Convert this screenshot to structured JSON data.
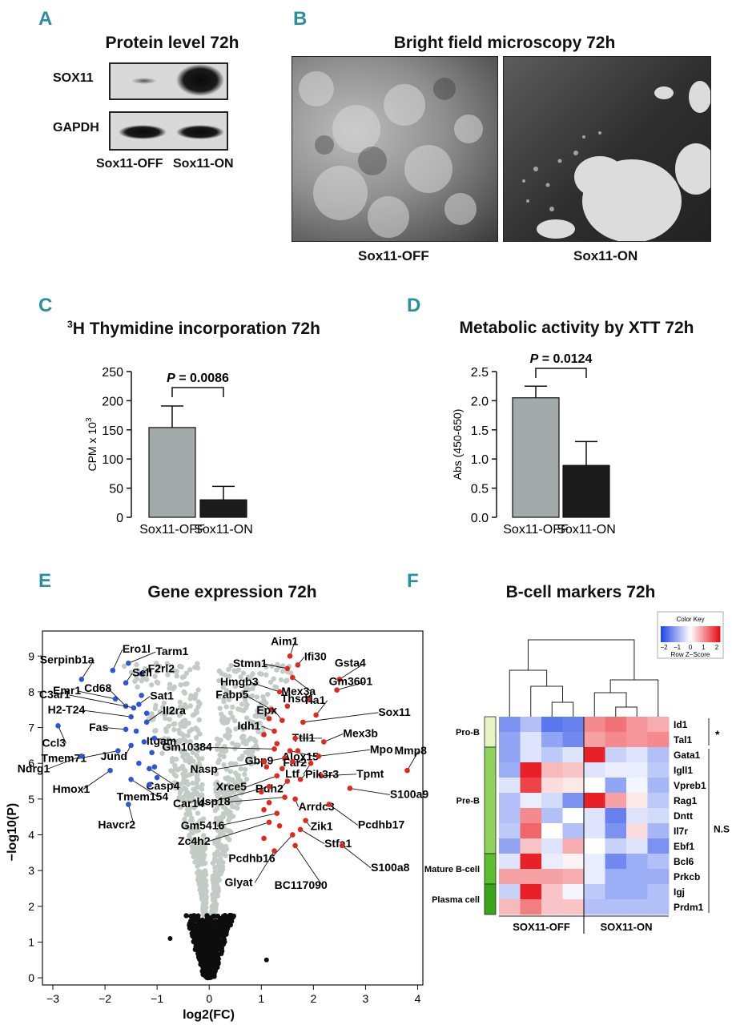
{
  "panels": {
    "A": "A",
    "B": "B",
    "C": "C",
    "D": "D",
    "E": "E",
    "F": "F"
  },
  "panelA": {
    "title": "Protein level 72h",
    "rows": [
      "SOX11",
      "GAPDH"
    ],
    "lanes": [
      "Sox11-OFF",
      "Sox11-ON"
    ]
  },
  "panelB": {
    "title": "Bright field microscopy 72h",
    "images": [
      "Sox11-OFF",
      "Sox11-ON"
    ]
  },
  "panelC": {
    "title_sup": "3",
    "title": "H Thymidine incorporation 72h",
    "ylabel_main": "CPM x 10",
    "ylabel_sup": "3",
    "p_label": "P",
    "p_value": " = 0.0086"
  },
  "panelD": {
    "title": "Metabolic activity by XTT 72h",
    "ylabel": "Abs (450-650)",
    "p_label": "P",
    "p_value": " = 0.0124"
  },
  "panelE": {
    "title": "Gene expression 72h"
  },
  "panelF": {
    "title": "B-cell markers 72h",
    "colorkey_title": "Color Key",
    "colorkey_ticks": [
      "−2",
      "−1",
      "0",
      "1",
      "2"
    ],
    "colorkey_label": "Row Z−Score",
    "groups": [
      "Pro-B",
      "Pre-B",
      "Mature B-cell",
      "Plasma cell"
    ],
    "genes": [
      "Id1",
      "Tal1",
      "Gata1",
      "Igll1",
      "Vpreb1",
      "Rag1",
      "Dntt",
      "Il7r",
      "Ebf1",
      "Bcl6",
      "Prkcb",
      "Igj",
      "Prdm1"
    ],
    "columns": [
      "SOX11-OFF",
      "SOX11-ON"
    ],
    "sig_mark": "*",
    "ns_mark": "N.S"
  },
  "chart_data": [
    {
      "type": "bar",
      "title": "3H Thymidine incorporation 72h",
      "categories": [
        "Sox11-OFF",
        "Sox11-ON"
      ],
      "values": [
        154,
        30
      ],
      "errors": [
        37,
        23
      ],
      "colors": [
        "#a3aaaa",
        "#1b1b1b"
      ],
      "ylabel": "CPM x 10^3",
      "ylim": [
        0,
        250
      ],
      "yticks": [
        0,
        50,
        100,
        150,
        200,
        250
      ],
      "ytick_labels": [
        "0",
        "50",
        "100",
        "150",
        "200",
        "250"
      ],
      "annotation": "P = 0.0086"
    },
    {
      "type": "bar",
      "title": "Metabolic activity by XTT 72h",
      "categories": [
        "Sox11-OFF",
        "Sox11-ON"
      ],
      "values": [
        2.05,
        0.89
      ],
      "errors": [
        0.2,
        0.41
      ],
      "colors": [
        "#a3aaaa",
        "#1b1b1b"
      ],
      "ylabel": "Abs (450-650)",
      "ylim": [
        0,
        2.5
      ],
      "yticks": [
        0,
        0.5,
        1,
        1.5,
        2,
        2.5
      ],
      "ytick_labels": [
        "0.0",
        "0.5",
        "1.0",
        "1.5",
        "2.0",
        "2.5"
      ],
      "annotation": "P = 0.0124"
    },
    {
      "type": "scatter",
      "title": "Gene expression 72h",
      "xlabel": "log2(FC)",
      "ylabel": "−log10(P)",
      "xlim": [
        -3.2,
        4.1
      ],
      "ylim": [
        -0.2,
        9.7
      ],
      "xticks": [
        -3,
        -2,
        -1,
        0,
        1,
        2,
        3,
        4
      ],
      "xtick_labels": [
        "−3",
        "−2",
        "−1",
        "0",
        "1",
        "2",
        "3",
        "4"
      ],
      "yticks": [
        0,
        1,
        2,
        3,
        4,
        5,
        6,
        7,
        8,
        9
      ],
      "ytick_labels": [
        "0",
        "1",
        "2",
        "3",
        "4",
        "5",
        "6",
        "7",
        "8",
        "9"
      ],
      "series": [
        {
          "name": "down",
          "color": "#2e55d6",
          "points": [
            {
              "gene": "Serpinb1a",
              "x": -2.45,
              "y": 8.35
            },
            {
              "gene": "Ero1l",
              "x": -1.85,
              "y": 8.6
            },
            {
              "gene": "Tarm1",
              "x": -1.55,
              "y": 8.8
            },
            {
              "gene": "F2rl2",
              "x": -1.3,
              "y": 8.5
            },
            {
              "gene": "Sell",
              "x": -1.6,
              "y": 8.25
            },
            {
              "gene": "Emr1",
              "x": -1.8,
              "y": 7.8
            },
            {
              "gene": "Cd68",
              "x": -1.6,
              "y": 7.6
            },
            {
              "gene": "C3ar1",
              "x": -1.45,
              "y": 7.55
            },
            {
              "gene": "Sat1",
              "x": -1.35,
              "y": 7.65
            },
            {
              "gene": "H2-T24",
              "x": -1.5,
              "y": 7.3
            },
            {
              "gene": "Il2ra",
              "x": -1.2,
              "y": 7.15
            },
            {
              "gene": "Ccl3",
              "x": -2.9,
              "y": 7.05
            },
            {
              "gene": "Fas",
              "x": -1.6,
              "y": 6.95
            },
            {
              "gene": "Itgam",
              "x": -1.05,
              "y": 6.7
            },
            {
              "gene": "Jund",
              "x": -1.5,
              "y": 6.5
            },
            {
              "gene": "Tmem71",
              "x": -1.75,
              "y": 6.35
            },
            {
              "gene": "Ndrg1",
              "x": -2.45,
              "y": 6.2
            },
            {
              "gene": "Hmox1",
              "x": -1.9,
              "y": 5.8
            },
            {
              "gene": "Casp4",
              "x": -1.15,
              "y": 5.85
            },
            {
              "gene": "Tmem154",
              "x": -1.5,
              "y": 5.55
            },
            {
              "gene": "Havcr2",
              "x": -1.55,
              "y": 4.85
            },
            {
              "gene": "",
              "x": -1.3,
              "y": 7.9
            },
            {
              "gene": "",
              "x": -1.25,
              "y": 6.6
            },
            {
              "gene": "",
              "x": -1.1,
              "y": 6.3
            },
            {
              "gene": "",
              "x": -1.05,
              "y": 5.9
            },
            {
              "gene": "",
              "x": -1.15,
              "y": 5.4
            },
            {
              "gene": "",
              "x": -1.0,
              "y": 5.6
            },
            {
              "gene": "",
              "x": -1.35,
              "y": 6.0
            },
            {
              "gene": "",
              "x": -1.4,
              "y": 6.9
            },
            {
              "gene": "",
              "x": -1.2,
              "y": 7.4
            }
          ]
        },
        {
          "name": "up",
          "color": "#e0281d",
          "points": [
            {
              "gene": "Aim1",
              "x": 1.55,
              "y": 9.0
            },
            {
              "gene": "Ifi30",
              "x": 1.7,
              "y": 8.75
            },
            {
              "gene": "Stmn1",
              "x": 1.5,
              "y": 8.65
            },
            {
              "gene": "Mex3a",
              "x": 1.6,
              "y": 8.4
            },
            {
              "gene": "Gsta4",
              "x": 2.5,
              "y": 8.35
            },
            {
              "gene": "Gm3601",
              "x": 2.45,
              "y": 8.05
            },
            {
              "gene": "Hmgb3",
              "x": 1.35,
              "y": 8.0
            },
            {
              "gene": "Thsd1",
              "x": 1.9,
              "y": 7.8
            },
            {
              "gene": "Tia1",
              "x": 2.05,
              "y": 7.35
            },
            {
              "gene": "Sox11",
              "x": 1.8,
              "y": 7.15
            },
            {
              "gene": "Fabp5",
              "x": 1.2,
              "y": 7.5
            },
            {
              "gene": "Epx",
              "x": 1.4,
              "y": 7.2
            },
            {
              "gene": "Idh1",
              "x": 1.25,
              "y": 6.9
            },
            {
              "gene": "Ttll1",
              "x": 1.65,
              "y": 6.7
            },
            {
              "gene": "Mex3b",
              "x": 2.2,
              "y": 6.6
            },
            {
              "gene": "Gm10384",
              "x": 1.25,
              "y": 6.4
            },
            {
              "gene": "Alox15",
              "x": 1.55,
              "y": 6.35
            },
            {
              "gene": "Mpo",
              "x": 2.1,
              "y": 6.2
            },
            {
              "gene": "Gbp9",
              "x": 1.45,
              "y": 6.15
            },
            {
              "gene": "Far2",
              "x": 1.6,
              "y": 6.05
            },
            {
              "gene": "Ltf",
              "x": 1.95,
              "y": 6.0
            },
            {
              "gene": "Nasp",
              "x": 1.05,
              "y": 6.05
            },
            {
              "gene": "Mmp8",
              "x": 3.8,
              "y": 5.8
            },
            {
              "gene": "Xrce5",
              "x": 1.3,
              "y": 5.65
            },
            {
              "gene": "Tpmt",
              "x": 2.15,
              "y": 5.65
            },
            {
              "gene": "Bdh2",
              "x": 1.5,
              "y": 5.5
            },
            {
              "gene": "Pik3r3",
              "x": 1.75,
              "y": 5.55
            },
            {
              "gene": "Car14",
              "x": 1.15,
              "y": 5.35
            },
            {
              "gene": "S100a9",
              "x": 2.7,
              "y": 5.3
            },
            {
              "gene": "Usp18",
              "x": 1.45,
              "y": 5.05
            },
            {
              "gene": "Arrdc3",
              "x": 1.65,
              "y": 5.0
            },
            {
              "gene": "Pcdhb17",
              "x": 2.3,
              "y": 4.85
            },
            {
              "gene": "Gm5416",
              "x": 1.3,
              "y": 4.6
            },
            {
              "gene": "Zik1",
              "x": 1.85,
              "y": 4.4
            },
            {
              "gene": "Zc4h2",
              "x": 1.15,
              "y": 4.35
            },
            {
              "gene": "Stfa1",
              "x": 1.75,
              "y": 4.15
            },
            {
              "gene": "Pcdhb16",
              "x": 1.6,
              "y": 4.0
            },
            {
              "gene": "BC117090",
              "x": 1.65,
              "y": 3.7
            },
            {
              "gene": "S100a8",
              "x": 2.55,
              "y": 3.7
            },
            {
              "gene": "Glyat",
              "x": 1.25,
              "y": 3.55
            },
            {
              "gene": "",
              "x": 1.05,
              "y": 6.8
            },
            {
              "gene": "",
              "x": 1.1,
              "y": 5.9
            },
            {
              "gene": "",
              "x": 1.0,
              "y": 5.2
            },
            {
              "gene": "",
              "x": 1.15,
              "y": 4.9
            },
            {
              "gene": "",
              "x": 1.35,
              "y": 4.25
            },
            {
              "gene": "",
              "x": 1.05,
              "y": 4.7
            },
            {
              "gene": "",
              "x": 1.4,
              "y": 5.85
            },
            {
              "gene": "",
              "x": 1.5,
              "y": 7.6
            },
            {
              "gene": "",
              "x": 1.15,
              "y": 7.25
            },
            {
              "gene": "",
              "x": 1.3,
              "y": 6.55
            },
            {
              "gene": "",
              "x": 1.7,
              "y": 6.35
            },
            {
              "gene": "",
              "x": 1.05,
              "y": 3.9
            }
          ]
        }
      ]
    },
    {
      "type": "heatmap",
      "title": "B-cell markers 72h",
      "rows": [
        "Id1",
        "Tal1",
        "Gata1",
        "Igll1",
        "Vpreb1",
        "Rag1",
        "Dntt",
        "Il7r",
        "Ebf1",
        "Bcl6",
        "Prkcb",
        "Igj",
        "Prdm1"
      ],
      "columns": [
        "SOX11-OFF",
        "SOX11-OFF",
        "SOX11-OFF",
        "SOX11-OFF",
        "SOX11-ON",
        "SOX11-ON",
        "SOX11-ON",
        "SOX11-ON"
      ],
      "values": [
        [
          -1.2,
          -0.7,
          -1.5,
          -1.4,
          1.0,
          1.2,
          0.9,
          0.7
        ],
        [
          -1.0,
          -0.3,
          -1.0,
          -1.3,
          0.8,
          1.0,
          0.9,
          1.0
        ],
        [
          -1.0,
          -0.3,
          -0.6,
          -0.3,
          1.9,
          -0.5,
          -0.3,
          -0.7
        ],
        [
          -0.9,
          1.9,
          0.6,
          0.5,
          -0.3,
          -0.2,
          -0.2,
          -0.6
        ],
        [
          -0.3,
          1.6,
          0.3,
          0.2,
          0.0,
          -1.0,
          -0.1,
          -0.8
        ],
        [
          -0.7,
          -0.2,
          -0.4,
          -1.2,
          1.9,
          0.8,
          0.2,
          -0.6
        ],
        [
          -0.7,
          1.0,
          -0.7,
          0.0,
          -0.3,
          -1.4,
          -0.3,
          -0.4
        ],
        [
          -0.6,
          1.3,
          0.0,
          -0.7,
          -0.3,
          -1.2,
          0.3,
          -0.8
        ],
        [
          -1.0,
          0.5,
          -0.3,
          0.7,
          0.0,
          -0.5,
          -0.3,
          -1.2
        ],
        [
          -0.3,
          1.9,
          -0.2,
          0.1,
          -0.2,
          -1.3,
          -0.9,
          -0.7
        ],
        [
          0.8,
          0.8,
          0.8,
          0.7,
          -0.2,
          -0.9,
          -0.9,
          -0.9
        ],
        [
          -0.5,
          1.9,
          0.5,
          -0.1,
          -0.6,
          -0.9,
          -0.9,
          -0.7
        ],
        [
          0.6,
          1.1,
          0.5,
          0.5,
          -0.7,
          -0.7,
          -0.7,
          -0.7
        ]
      ],
      "zlim": [
        -2,
        2
      ],
      "row_groups": [
        {
          "name": "Pro-B",
          "rows": 2
        },
        {
          "name": "Pre-B",
          "rows": 7
        },
        {
          "name": "Mature B-cell",
          "rows": 2
        },
        {
          "name": "Plasma cell",
          "rows": 2
        }
      ]
    }
  ]
}
